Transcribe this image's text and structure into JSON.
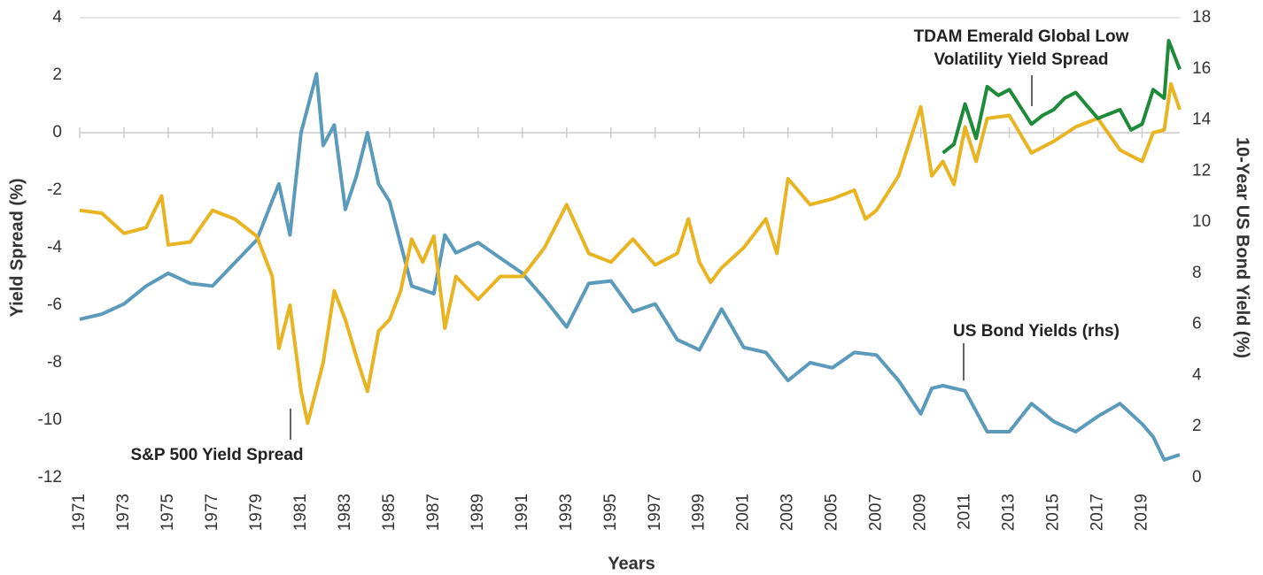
{
  "chart_data": {
    "type": "line",
    "xlabel": "Years",
    "ylabel": "Yield Spread (%)",
    "y2label": "10-Year US Bond Yield (%)",
    "xlim": [
      1971,
      2020.7
    ],
    "xticks": [
      1971,
      1973,
      1975,
      1977,
      1979,
      1981,
      1983,
      1985,
      1987,
      1989,
      1991,
      1993,
      1995,
      1997,
      1999,
      2001,
      2003,
      2005,
      2007,
      2009,
      2011,
      2013,
      2015,
      2017,
      2019
    ],
    "ylim": [
      -12,
      4
    ],
    "yticks": [
      4,
      2,
      0,
      -2,
      -4,
      -6,
      -8,
      -10,
      -12
    ],
    "y2lim": [
      0,
      18
    ],
    "y2ticks": [
      0,
      2,
      4,
      6,
      8,
      10,
      12,
      14,
      16,
      18
    ],
    "series": [
      {
        "color": "#5b9abb",
        "axis": "y2",
        "x": [
          1971,
          1972,
          1973,
          1974,
          1975,
          1976,
          1977,
          1978,
          1979,
          1980,
          1980.5,
          1981,
          1981.7,
          1982,
          1982.5,
          1983,
          1983.5,
          1984,
          1984.5,
          1985,
          1986,
          1987,
          1987.5,
          1988,
          1989,
          1990,
          1991,
          1992,
          1993,
          1994,
          1995,
          1996,
          1997,
          1998,
          1999,
          2000,
          2001,
          2002,
          2003,
          2004,
          2005,
          2006,
          2007,
          2008,
          2009,
          2009.5,
          2010,
          2011,
          2012,
          2013,
          2014,
          2015,
          2016,
          2017,
          2018,
          2019,
          2019.5,
          2020,
          2020.7
        ],
        "values": [
          6.2,
          6.4,
          6.8,
          7.5,
          8.0,
          7.6,
          7.5,
          8.4,
          9.3,
          11.5,
          9.5,
          13.5,
          15.8,
          13.0,
          13.8,
          10.5,
          11.8,
          13.5,
          11.5,
          10.8,
          7.5,
          7.2,
          9.5,
          8.8,
          9.2,
          8.6,
          8.0,
          7.0,
          5.9,
          7.6,
          7.7,
          6.5,
          6.8,
          5.4,
          5.0,
          6.6,
          5.1,
          4.9,
          3.8,
          4.5,
          4.3,
          4.9,
          4.8,
          3.8,
          2.5,
          3.5,
          3.6,
          3.4,
          1.8,
          1.8,
          2.9,
          2.2,
          1.8,
          2.4,
          2.9,
          2.1,
          1.6,
          0.7,
          0.9
        ]
      },
      {
        "color": "#e8b422",
        "axis": "y",
        "x": [
          1971,
          1972,
          1973,
          1974,
          1974.7,
          1975,
          1976,
          1977,
          1978,
          1979,
          1979.7,
          1980,
          1980.5,
          1981,
          1981.3,
          1982,
          1982.5,
          1983,
          1983.5,
          1984,
          1984.5,
          1985,
          1985.5,
          1986,
          1986.5,
          1987,
          1987.5,
          1988,
          1989,
          1990,
          1991,
          1992,
          1993,
          1994,
          1995,
          1996,
          1997,
          1998,
          1998.5,
          1999,
          1999.5,
          2000,
          2001,
          2002,
          2002.5,
          2003,
          2004,
          2005,
          2006,
          2006.5,
          2007,
          2008,
          2009,
          2009.5,
          2010,
          2010.5,
          2011,
          2011.5,
          2012,
          2013,
          2014,
          2015,
          2016,
          2017,
          2018,
          2019,
          2019.5,
          2020,
          2020.3,
          2020.7
        ],
        "values": [
          -2.7,
          -2.8,
          -3.5,
          -3.3,
          -2.2,
          -3.9,
          -3.8,
          -2.7,
          -3.0,
          -3.6,
          -5.0,
          -7.5,
          -6.0,
          -9.0,
          -10.1,
          -8.0,
          -5.5,
          -6.5,
          -7.8,
          -9.0,
          -6.9,
          -6.5,
          -5.5,
          -3.7,
          -4.5,
          -3.6,
          -6.8,
          -5.0,
          -5.8,
          -5.0,
          -5.0,
          -4.0,
          -2.5,
          -4.2,
          -4.5,
          -3.7,
          -4.6,
          -4.2,
          -3.0,
          -4.5,
          -5.2,
          -4.7,
          -4.0,
          -3.0,
          -4.2,
          -1.6,
          -2.5,
          -2.3,
          -2.0,
          -3.0,
          -2.7,
          -1.5,
          0.9,
          -1.5,
          -1.0,
          -1.8,
          0.2,
          -1.0,
          0.5,
          0.6,
          -0.7,
          -0.3,
          0.2,
          0.5,
          -0.6,
          -1.0,
          0.0,
          0.1,
          1.7,
          0.8
        ]
      },
      {
        "color": "#1e8a3a",
        "axis": "y",
        "x": [
          2010,
          2010.5,
          2011,
          2011.5,
          2012,
          2012.5,
          2013,
          2014,
          2014.5,
          2015,
          2015.5,
          2016,
          2017,
          2018,
          2018.5,
          2019,
          2019.5,
          2020,
          2020.2,
          2020.7
        ],
        "values": [
          -0.7,
          -0.4,
          1.0,
          -0.2,
          1.6,
          1.3,
          1.5,
          0.3,
          0.6,
          0.8,
          1.2,
          1.4,
          0.5,
          0.8,
          0.1,
          0.3,
          1.5,
          1.2,
          3.2,
          2.2
        ]
      }
    ],
    "annotations": [
      {
        "text": [
          "TDAM Emerald Global Low",
          "Volatility Yield Spread"
        ]
      },
      {
        "text": [
          "US Bond Yields (rhs)"
        ]
      },
      {
        "text": [
          "S&P 500 Yield Spread"
        ]
      }
    ]
  }
}
